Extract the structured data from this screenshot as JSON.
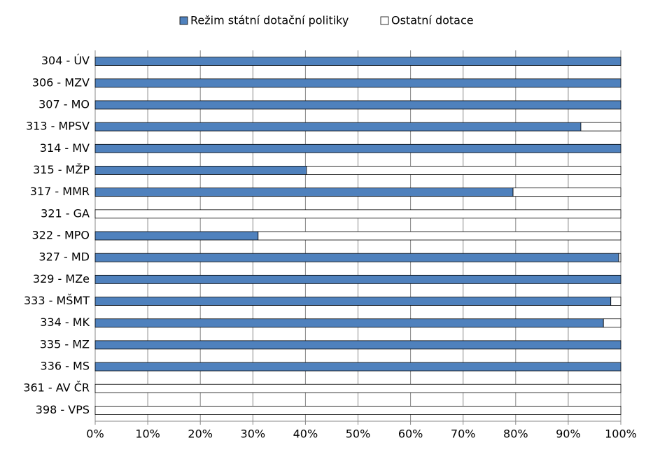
{
  "chart_data": {
    "type": "stacked-bar-horizontal",
    "categories": [
      "304 - ÚV",
      "306 - MZV",
      "307 - MO",
      "313 - MPSV",
      "314 - MV",
      "315 - MŽP",
      "317 - MMR",
      "321 - GA",
      "322 - MPO",
      "327 - MD",
      "329 - MZe",
      "333 - MŠMT",
      "334 - MK",
      "335 - MZ",
      "336 - MS",
      "361 - AV ČR",
      "398 - VPS"
    ],
    "series": [
      {
        "name": "Režim státní dotační politiky",
        "color": "#4f81bd",
        "values": [
          100,
          100,
          100,
          92.4,
          100,
          40.2,
          79.5,
          0,
          31.0,
          99.6,
          100,
          98.1,
          96.7,
          100,
          100,
          0,
          0
        ]
      },
      {
        "name": "Ostatní dotace",
        "color": "#ffffff",
        "values": [
          0,
          0,
          0,
          7.6,
          0,
          59.8,
          20.5,
          100,
          69.0,
          0.4,
          0,
          1.9,
          3.3,
          0,
          0,
          100,
          100
        ]
      }
    ],
    "xlim": [
      0,
      100
    ],
    "xticks": [
      {
        "value": 0,
        "label": "0%"
      },
      {
        "value": 10,
        "label": "10%"
      },
      {
        "value": 20,
        "label": "20%"
      },
      {
        "value": 30,
        "label": "30%"
      },
      {
        "value": 40,
        "label": "40%"
      },
      {
        "value": 50,
        "label": "50%"
      },
      {
        "value": 60,
        "label": "60%"
      },
      {
        "value": 70,
        "label": "70%"
      },
      {
        "value": 80,
        "label": "80%"
      },
      {
        "value": 90,
        "label": "90%"
      },
      {
        "value": 100,
        "label": "100%"
      }
    ],
    "grid": true,
    "legend": "top"
  }
}
